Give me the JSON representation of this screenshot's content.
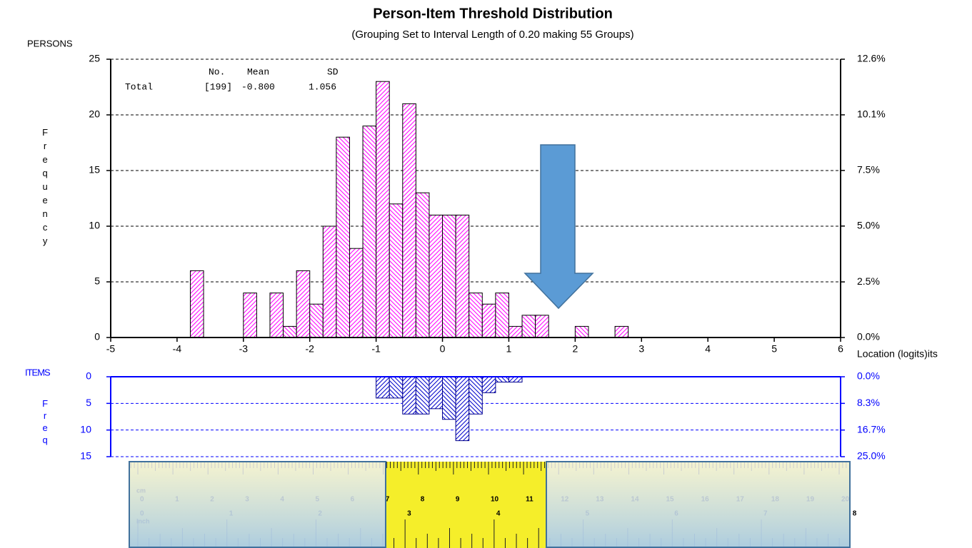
{
  "chart_data": [
    {
      "type": "histogram",
      "title": "Person-Item Threshold Distribution",
      "subtitle": "(Grouping Set to Interval Length of  0.20  making  55  Groups)",
      "group_label": "PERSONS",
      "y_label": "Frequency",
      "x_label": "Location (logits)its",
      "bins": [
        -5,
        -4.8,
        -4.6,
        -4.4,
        -4.2,
        -4,
        -3.8,
        -3.6,
        -3.4,
        -3.2,
        -3,
        -2.8,
        -2.6,
        -2.4,
        -2.2,
        -2,
        -1.8,
        -1.6,
        -1.4,
        -1.2,
        -1,
        -0.8,
        -0.6,
        -0.4,
        -0.2,
        0,
        0.2,
        0.4,
        0.6,
        0.8,
        1,
        1.2,
        1.4,
        1.6,
        1.8,
        2,
        2.2,
        2.4,
        2.6,
        2.8,
        3,
        3.2,
        3.4,
        3.6,
        3.8,
        4,
        4.2,
        4.4,
        4.6,
        4.8,
        5,
        5.2,
        5.4,
        5.6,
        5.8,
        6
      ],
      "values": [
        0,
        0,
        0,
        0,
        0,
        0,
        6,
        0,
        0,
        0,
        4,
        0,
        4,
        1,
        6,
        3,
        10,
        18,
        8,
        19,
        23,
        12,
        21,
        13,
        11,
        11,
        11,
        4,
        3,
        4,
        1,
        2,
        2,
        0,
        0,
        1,
        0,
        0,
        1,
        0,
        0,
        0,
        0,
        0,
        0,
        0,
        0,
        0,
        0,
        0,
        0,
        0,
        0,
        0,
        0
      ],
      "color": "#ff00ff",
      "hatch": true,
      "direction": "up",
      "xlim": [
        -5,
        6
      ],
      "xticks": [
        -5,
        -4,
        -3,
        -2,
        -1,
        0,
        1,
        2,
        3,
        4,
        5,
        6
      ],
      "ylim": [
        0,
        25
      ],
      "yticks": [
        0,
        5,
        10,
        15,
        20,
        25
      ],
      "y2lim": [
        0,
        12.56
      ],
      "y2ticks": [
        {
          "value": 0,
          "label": "0.0%"
        },
        {
          "value": 2.51,
          "label": "2.5%"
        },
        {
          "value": 5.03,
          "label": "5.0%"
        },
        {
          "value": 7.54,
          "label": "7.5%"
        },
        {
          "value": 10.05,
          "label": "10.1%"
        },
        {
          "value": 12.56,
          "label": "12.6%"
        }
      ],
      "grid": true,
      "stats": {
        "headers": [
          "No.",
          "Mean",
          "SD"
        ],
        "row_label": "Total",
        "row": [
          "[199]",
          "-0.800",
          "1.056"
        ]
      }
    },
    {
      "type": "histogram",
      "group_label": "ITEMS",
      "y_label": "Freq",
      "bins": [
        -5,
        -4.8,
        -4.6,
        -4.4,
        -4.2,
        -4,
        -3.8,
        -3.6,
        -3.4,
        -3.2,
        -3,
        -2.8,
        -2.6,
        -2.4,
        -2.2,
        -2,
        -1.8,
        -1.6,
        -1.4,
        -1.2,
        -1,
        -0.8,
        -0.6,
        -0.4,
        -0.2,
        0,
        0.2,
        0.4,
        0.6,
        0.8,
        1,
        1.2,
        1.4,
        1.6,
        1.8,
        2,
        2.2,
        2.4,
        2.6,
        2.8,
        3,
        3.2,
        3.4,
        3.6,
        3.8,
        4,
        4.2,
        4.4,
        4.6,
        4.8,
        5,
        5.2,
        5.4,
        5.6,
        5.8,
        6
      ],
      "values": [
        0,
        0,
        0,
        0,
        0,
        0,
        0,
        0,
        0,
        0,
        0,
        0,
        0,
        0,
        0,
        0,
        0,
        0,
        0,
        0,
        4,
        4,
        7,
        7,
        6,
        8,
        12,
        7,
        3,
        1,
        1,
        0,
        0,
        0,
        0,
        0,
        0,
        0,
        0,
        0,
        0,
        0,
        0,
        0,
        0,
        0,
        0,
        0,
        0,
        0,
        0,
        0,
        0,
        0,
        0
      ],
      "color": "#0000cc",
      "hatch": true,
      "direction": "down",
      "xlim": [
        -5,
        6
      ],
      "ylim": [
        0,
        15
      ],
      "yticks": [
        0,
        5,
        10,
        15
      ],
      "y2lim": [
        0,
        25
      ],
      "y2ticks": [
        {
          "value": 0,
          "label": "0.0%"
        },
        {
          "value": 8.33,
          "label": "8.3%"
        },
        {
          "value": 16.67,
          "label": "16.7%"
        },
        {
          "value": 25,
          "label": "25.0%"
        }
      ],
      "grid": true
    }
  ],
  "ruler": {
    "cm_label": "cm",
    "cm": [
      0,
      1,
      2,
      3,
      4,
      5,
      6,
      7,
      8,
      9,
      10,
      11,
      12,
      13,
      14,
      15,
      16,
      17,
      18,
      19,
      20
    ],
    "inch_label": "inch",
    "inch": [
      0,
      1,
      2,
      3,
      4,
      5,
      6,
      7,
      8
    ]
  }
}
